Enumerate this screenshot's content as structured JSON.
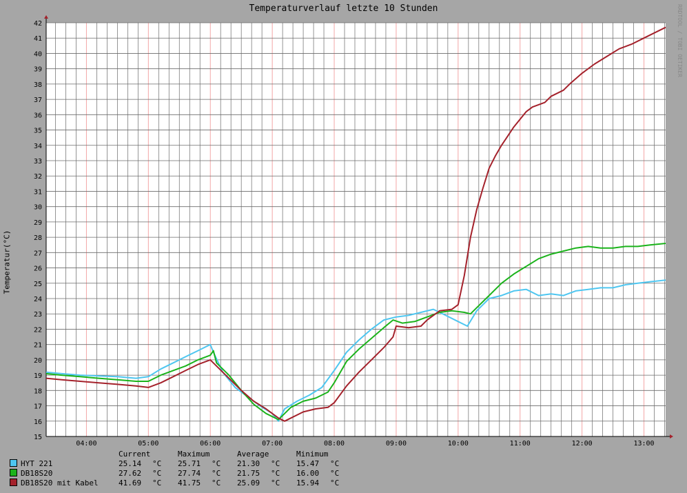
{
  "chart_data": {
    "type": "line",
    "title": "Temperaturverlauf letzte 10 Stunden",
    "ylabel": "Temperatur(°C)",
    "xlabel": "",
    "ylim": [
      15,
      42
    ],
    "y_ticks": [
      "15",
      "16",
      "17",
      "18",
      "19",
      "20",
      "21",
      "22",
      "23",
      "24",
      "25",
      "26",
      "27",
      "28",
      "29",
      "30",
      "31",
      "32",
      "33",
      "34",
      "35",
      "36",
      "37",
      "38",
      "39",
      "40",
      "41",
      "42"
    ],
    "x_tick_labels": [
      "04:00",
      "05:00",
      "06:00",
      "07:00",
      "08:00",
      "09:00",
      "10:00",
      "11:00",
      "12:00",
      "13:00"
    ],
    "x_range_hours": [
      3.35,
      13.35
    ],
    "grid": true,
    "watermark": "RRDTOOL / TOBI OETIKER",
    "series": [
      {
        "name": "HYT 221",
        "color": "#4ec6f0",
        "points": [
          [
            3.35,
            19.2
          ],
          [
            3.6,
            19.1
          ],
          [
            3.9,
            19.0
          ],
          [
            4.2,
            18.95
          ],
          [
            4.5,
            18.9
          ],
          [
            4.8,
            18.8
          ],
          [
            5.0,
            18.9
          ],
          [
            5.2,
            19.4
          ],
          [
            5.4,
            19.8
          ],
          [
            5.6,
            20.2
          ],
          [
            5.8,
            20.6
          ],
          [
            6.0,
            21.0
          ],
          [
            6.05,
            20.5
          ],
          [
            6.2,
            19.2
          ],
          [
            6.4,
            18.2
          ],
          [
            6.6,
            17.6
          ],
          [
            6.8,
            17.0
          ],
          [
            7.0,
            16.5
          ],
          [
            7.1,
            16.0
          ],
          [
            7.2,
            16.8
          ],
          [
            7.4,
            17.3
          ],
          [
            7.6,
            17.7
          ],
          [
            7.8,
            18.2
          ],
          [
            8.0,
            19.3
          ],
          [
            8.2,
            20.5
          ],
          [
            8.4,
            21.3
          ],
          [
            8.6,
            22.0
          ],
          [
            8.8,
            22.6
          ],
          [
            9.0,
            22.8
          ],
          [
            9.2,
            22.9
          ],
          [
            9.4,
            23.1
          ],
          [
            9.6,
            23.3
          ],
          [
            9.8,
            22.9
          ],
          [
            10.0,
            22.5
          ],
          [
            10.15,
            22.2
          ],
          [
            10.3,
            23.2
          ],
          [
            10.5,
            24.0
          ],
          [
            10.7,
            24.2
          ],
          [
            10.9,
            24.5
          ],
          [
            11.1,
            24.6
          ],
          [
            11.3,
            24.2
          ],
          [
            11.5,
            24.3
          ],
          [
            11.7,
            24.2
          ],
          [
            11.9,
            24.5
          ],
          [
            12.1,
            24.6
          ],
          [
            12.3,
            24.7
          ],
          [
            12.5,
            24.7
          ],
          [
            12.7,
            24.9
          ],
          [
            12.9,
            25.0
          ],
          [
            13.1,
            25.1
          ],
          [
            13.35,
            25.2
          ]
        ]
      },
      {
        "name": "DB18S20",
        "color": "#1bb31b",
        "points": [
          [
            3.35,
            19.1
          ],
          [
            3.6,
            19.0
          ],
          [
            3.9,
            18.9
          ],
          [
            4.2,
            18.8
          ],
          [
            4.5,
            18.7
          ],
          [
            4.8,
            18.6
          ],
          [
            5.0,
            18.6
          ],
          [
            5.2,
            19.0
          ],
          [
            5.4,
            19.3
          ],
          [
            5.6,
            19.6
          ],
          [
            5.8,
            20.0
          ],
          [
            6.0,
            20.3
          ],
          [
            6.05,
            20.6
          ],
          [
            6.1,
            19.8
          ],
          [
            6.3,
            19.0
          ],
          [
            6.5,
            18.0
          ],
          [
            6.7,
            17.1
          ],
          [
            6.9,
            16.5
          ],
          [
            7.1,
            16.1
          ],
          [
            7.2,
            16.5
          ],
          [
            7.3,
            16.9
          ],
          [
            7.5,
            17.3
          ],
          [
            7.7,
            17.5
          ],
          [
            7.9,
            17.9
          ],
          [
            8.0,
            18.5
          ],
          [
            8.2,
            19.9
          ],
          [
            8.4,
            20.7
          ],
          [
            8.6,
            21.4
          ],
          [
            8.8,
            22.1
          ],
          [
            8.95,
            22.6
          ],
          [
            9.1,
            22.4
          ],
          [
            9.3,
            22.5
          ],
          [
            9.5,
            22.8
          ],
          [
            9.7,
            23.1
          ],
          [
            9.9,
            23.2
          ],
          [
            10.1,
            23.1
          ],
          [
            10.2,
            23.0
          ],
          [
            10.3,
            23.4
          ],
          [
            10.5,
            24.2
          ],
          [
            10.7,
            25.0
          ],
          [
            10.9,
            25.6
          ],
          [
            11.1,
            26.1
          ],
          [
            11.3,
            26.6
          ],
          [
            11.5,
            26.9
          ],
          [
            11.7,
            27.1
          ],
          [
            11.9,
            27.3
          ],
          [
            12.1,
            27.4
          ],
          [
            12.3,
            27.3
          ],
          [
            12.5,
            27.3
          ],
          [
            12.7,
            27.4
          ],
          [
            12.9,
            27.4
          ],
          [
            13.1,
            27.5
          ],
          [
            13.35,
            27.6
          ]
        ]
      },
      {
        "name": "DB18S20 mit Kabel",
        "color": "#a4212b",
        "points": [
          [
            3.35,
            18.8
          ],
          [
            3.6,
            18.7
          ],
          [
            3.9,
            18.6
          ],
          [
            4.2,
            18.5
          ],
          [
            4.5,
            18.4
          ],
          [
            4.8,
            18.3
          ],
          [
            5.0,
            18.2
          ],
          [
            5.2,
            18.5
          ],
          [
            5.4,
            18.9
          ],
          [
            5.6,
            19.3
          ],
          [
            5.8,
            19.7
          ],
          [
            6.0,
            20.0
          ],
          [
            6.1,
            19.6
          ],
          [
            6.3,
            18.8
          ],
          [
            6.5,
            18.0
          ],
          [
            6.7,
            17.3
          ],
          [
            6.9,
            16.8
          ],
          [
            7.1,
            16.2
          ],
          [
            7.2,
            16.0
          ],
          [
            7.3,
            16.2
          ],
          [
            7.5,
            16.6
          ],
          [
            7.7,
            16.8
          ],
          [
            7.9,
            16.9
          ],
          [
            8.0,
            17.2
          ],
          [
            8.2,
            18.3
          ],
          [
            8.4,
            19.2
          ],
          [
            8.6,
            20.0
          ],
          [
            8.8,
            20.8
          ],
          [
            8.95,
            21.5
          ],
          [
            9.0,
            22.2
          ],
          [
            9.2,
            22.1
          ],
          [
            9.4,
            22.2
          ],
          [
            9.5,
            22.6
          ],
          [
            9.7,
            23.2
          ],
          [
            9.9,
            23.3
          ],
          [
            10.0,
            23.6
          ],
          [
            10.1,
            25.5
          ],
          [
            10.2,
            28.0
          ],
          [
            10.3,
            29.8
          ],
          [
            10.4,
            31.2
          ],
          [
            10.5,
            32.5
          ],
          [
            10.6,
            33.3
          ],
          [
            10.7,
            34.0
          ],
          [
            10.8,
            34.6
          ],
          [
            10.9,
            35.2
          ],
          [
            11.0,
            35.7
          ],
          [
            11.1,
            36.2
          ],
          [
            11.2,
            36.5
          ],
          [
            11.4,
            36.8
          ],
          [
            11.5,
            37.2
          ],
          [
            11.7,
            37.6
          ],
          [
            11.8,
            38.0
          ],
          [
            12.0,
            38.7
          ],
          [
            12.2,
            39.3
          ],
          [
            12.4,
            39.8
          ],
          [
            12.6,
            40.3
          ],
          [
            12.8,
            40.6
          ],
          [
            13.0,
            41.0
          ],
          [
            13.2,
            41.4
          ],
          [
            13.35,
            41.7
          ]
        ]
      }
    ]
  },
  "legend": {
    "headers": [
      "Current",
      "Maximum",
      "Average",
      "Minimum"
    ],
    "unit": "°C",
    "rows": [
      {
        "name": "HYT 221",
        "color": "#4ec6f0",
        "current": "25.14",
        "maximum": "25.71",
        "average": "21.30",
        "minimum": "15.47"
      },
      {
        "name": "DB18S20",
        "color": "#1bb31b",
        "current": "27.62",
        "maximum": "27.74",
        "average": "21.75",
        "minimum": "16.00"
      },
      {
        "name": "DB18S20 mit Kabel",
        "color": "#a4212b",
        "current": "41.69",
        "maximum": "41.75",
        "average": "25.09",
        "minimum": "15.94"
      }
    ]
  }
}
